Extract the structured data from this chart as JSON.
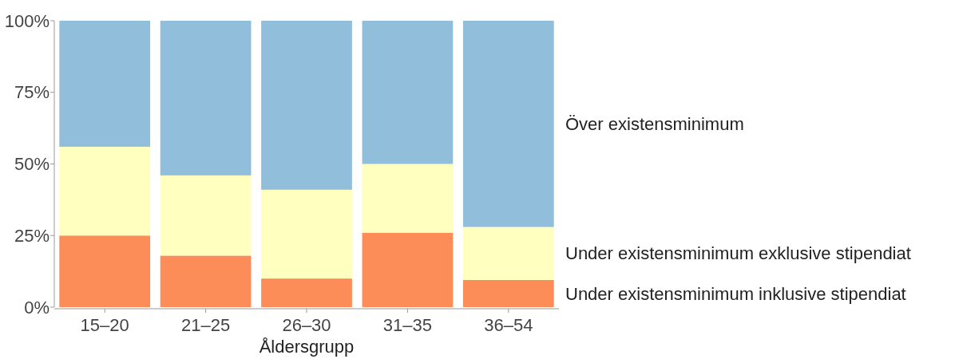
{
  "chart_data": {
    "type": "bar",
    "stacked": true,
    "xlabel": "Åldersgrupp",
    "categories": [
      "15–20",
      "21–25",
      "26–30",
      "31–35",
      "36–54"
    ],
    "series": [
      {
        "name": "Under existensminimum inklusive stipendiat",
        "color": "#fc8d59",
        "values": [
          25,
          18,
          10,
          26,
          9.5
        ]
      },
      {
        "name": "Under existensminimum exklusive stipendiat",
        "color": "#ffffbf",
        "values": [
          31,
          28,
          31,
          24,
          18.5
        ]
      },
      {
        "name": "Över existensminimum",
        "color": "#91bfdb",
        "values": [
          44,
          54,
          59,
          50,
          72
        ]
      }
    ],
    "ylim": [
      0,
      100
    ],
    "yticks": [
      {
        "value": 0,
        "label": "0%"
      },
      {
        "value": 25,
        "label": "25%"
      },
      {
        "value": 50,
        "label": "50%"
      },
      {
        "value": 75,
        "label": "75%"
      },
      {
        "value": 100,
        "label": "100%"
      }
    ]
  }
}
